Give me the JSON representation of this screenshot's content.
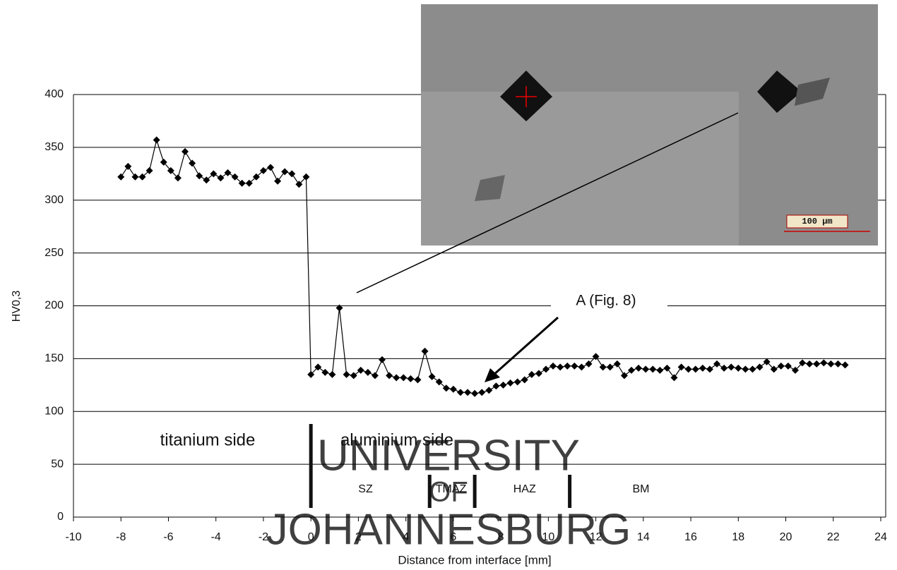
{
  "chart_data": {
    "type": "line",
    "x_label": "Distance from interface  [mm]",
    "y_label": "HV0,3",
    "xlim": [
      -10,
      24
    ],
    "xticks": [
      -10,
      -8,
      -6,
      -4,
      -2,
      0,
      2,
      4,
      6,
      8,
      10,
      12,
      14,
      16,
      18,
      20,
      22,
      24
    ],
    "ylim": [
      0,
      400
    ],
    "yticks": [
      0,
      50,
      100,
      150,
      200,
      250,
      300,
      350,
      400
    ],
    "grid": true,
    "series": [
      {
        "color": "#000000",
        "x": [
          -8,
          -7.7,
          -7.4,
          -7.1,
          -6.8,
          -6.5,
          -6.2,
          -5.9,
          -5.6,
          -5.3,
          -5,
          -4.7,
          -4.4,
          -4.1,
          -3.8,
          -3.5,
          -3.2,
          -2.9,
          -2.6,
          -2.3,
          -2,
          -1.7,
          -1.4,
          -1.1,
          -0.8,
          -0.5,
          -0.2,
          0,
          0.3,
          0.6,
          0.9,
          1.2,
          1.5,
          1.8,
          2.1,
          2.4,
          2.7,
          3,
          3.3,
          3.6,
          3.9,
          4.2,
          4.5,
          4.8,
          5.1,
          5.4,
          5.7,
          6,
          6.3,
          6.6,
          6.9,
          7.2,
          7.5,
          7.8,
          8.1,
          8.4,
          8.7,
          9,
          9.3,
          9.6,
          9.9,
          10.2,
          10.5,
          10.8,
          11.1,
          11.4,
          11.7,
          12,
          12.3,
          12.6,
          12.9,
          13.2,
          13.5,
          13.8,
          14.1,
          14.4,
          14.7,
          15,
          15.3,
          15.6,
          15.9,
          16.2,
          16.5,
          16.8,
          17.1,
          17.4,
          17.7,
          18,
          18.3,
          18.6,
          18.9,
          19.2,
          19.5,
          19.8,
          20.1,
          20.4,
          20.7,
          21,
          21.3,
          21.6,
          21.9,
          22.2,
          22.5
        ],
        "values": [
          322,
          332,
          322,
          322,
          328,
          357,
          336,
          328,
          321,
          346,
          335,
          323,
          319,
          325,
          321,
          326,
          322,
          316,
          316,
          322,
          328,
          331,
          318,
          327,
          325,
          315,
          322,
          135,
          142,
          137,
          135,
          198,
          135,
          134,
          139,
          137,
          134,
          149,
          134,
          132,
          132,
          131,
          130,
          157,
          133,
          128,
          122,
          121,
          118,
          118,
          117,
          118,
          120,
          124,
          125,
          127,
          128,
          130,
          135,
          136,
          140,
          143,
          142,
          143,
          143,
          142,
          145,
          152,
          142,
          142,
          145,
          134,
          139,
          141,
          140,
          140,
          139,
          141,
          132,
          142,
          140,
          140,
          141,
          140,
          145,
          141,
          142,
          141,
          140,
          140,
          142,
          147,
          140,
          143,
          143,
          139,
          146,
          145,
          145,
          146,
          145,
          145,
          144
        ]
      }
    ],
    "side_labels": [
      "titanium side",
      "aluminium side"
    ],
    "zones": {
      "labels": [
        "SZ",
        "TMAZ",
        "HAZ",
        "BM"
      ],
      "boundaries": [
        0,
        5,
        6.9,
        10.9
      ]
    },
    "annotation": "A (Fig. 8)",
    "inset": {
      "scale_label": "100 µm"
    },
    "watermark": [
      "UNIVERSITY",
      "OF",
      "JOHANNESBURG"
    ]
  }
}
